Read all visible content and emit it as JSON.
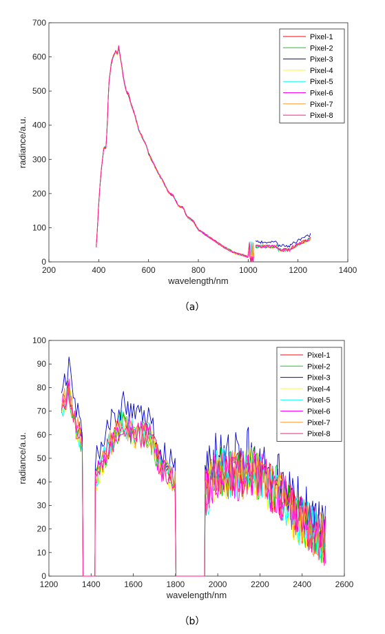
{
  "chart_data": [
    {
      "type": "line",
      "caption": "（a）",
      "xlabel": "wavelength/nm",
      "ylabel": "radiance/a.u.",
      "xlim": [
        200,
        1400
      ],
      "ylim": [
        0,
        700
      ],
      "xticks": [
        200,
        400,
        600,
        800,
        1000,
        1200,
        1400
      ],
      "yticks": [
        0,
        100,
        200,
        300,
        400,
        500,
        600,
        700
      ],
      "grid": false,
      "legend_position": "top-right",
      "series": [
        {
          "name": "Pixel-1",
          "color": "#ff0000"
        },
        {
          "name": "Pixel-2",
          "color": "#00d800"
        },
        {
          "name": "Pixel-3",
          "color": "#0000d0"
        },
        {
          "name": "Pixel-4",
          "color": "#ffff00"
        },
        {
          "name": "Pixel-5",
          "color": "#00ffff"
        },
        {
          "name": "Pixel-6",
          "color": "#ff00ff"
        },
        {
          "name": "Pixel-7",
          "color": "#ff9a2e"
        },
        {
          "name": "Pixel-8",
          "color": "#ff1493"
        }
      ],
      "base_curve": {
        "x": [
          390,
          395,
          400,
          410,
          420,
          430,
          435,
          440,
          450,
          455,
          460,
          465,
          470,
          475,
          480,
          490,
          500,
          510,
          520,
          530,
          540,
          550,
          560,
          570,
          580,
          590,
          600,
          620,
          640,
          660,
          680,
          700,
          720,
          740,
          750,
          760,
          780,
          800,
          850,
          900,
          950,
          980,
          1000
        ],
        "y": [
          45,
          100,
          175,
          270,
          335,
          340,
          420,
          520,
          585,
          600,
          610,
          615,
          625,
          610,
          635,
          590,
          540,
          505,
          495,
          465,
          445,
          420,
          390,
          375,
          360,
          345,
          320,
          290,
          260,
          235,
          205,
          195,
          165,
          160,
          140,
          130,
          120,
          95,
          70,
          45,
          25,
          20,
          15
        ]
      },
      "noisy_segment": {
        "x_start": 1030,
        "x_end": 1250
      }
    },
    {
      "type": "line",
      "caption": "（b）",
      "xlabel": "wavelength/nm",
      "ylabel": "radiance/a.u.",
      "xlim": [
        1200,
        2600
      ],
      "ylim": [
        0,
        100
      ],
      "xticks": [
        1200,
        1400,
        1600,
        1800,
        2000,
        2200,
        2400,
        2600
      ],
      "yticks": [
        0,
        10,
        20,
        30,
        40,
        50,
        60,
        70,
        80,
        90,
        100
      ],
      "grid": false,
      "legend_position": "top-right",
      "series": [
        {
          "name": "Pixel-1",
          "color": "#ff0000"
        },
        {
          "name": "Pixel-2",
          "color": "#00d800"
        },
        {
          "name": "Pixel-3",
          "color": "#0000d0"
        },
        {
          "name": "Pixel-4",
          "color": "#ffff00"
        },
        {
          "name": "Pixel-5",
          "color": "#00ffff"
        },
        {
          "name": "Pixel-6",
          "color": "#ff00ff"
        },
        {
          "name": "Pixel-7",
          "color": "#ff9a2e"
        },
        {
          "name": "Pixel-8",
          "color": "#ff1493"
        }
      ],
      "segments": [
        {
          "x_start": 1260,
          "x_end": 1360,
          "approx_level": [
            70,
            80,
            65,
            55
          ]
        },
        {
          "x_start": 1420,
          "x_end": 1800,
          "approx_level": [
            40,
            55,
            65,
            60,
            60,
            45,
            40
          ]
        },
        {
          "x_start": 1940,
          "x_end": 2510,
          "approx_level": [
            35,
            45,
            42,
            45,
            40,
            35,
            25,
            20,
            15
          ]
        }
      ]
    }
  ]
}
